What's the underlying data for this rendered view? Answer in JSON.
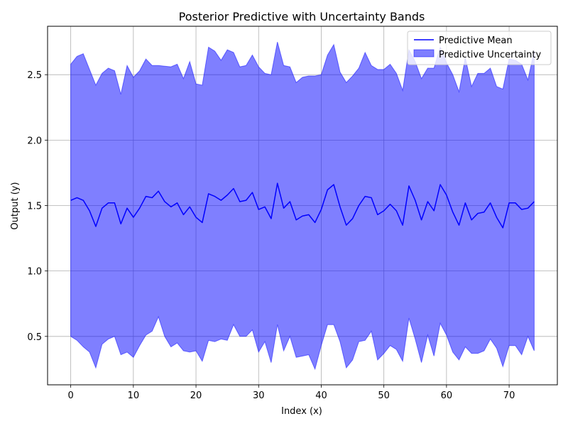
{
  "chart_data": {
    "type": "area",
    "title": "Posterior Predictive with Uncertainty Bands",
    "xlabel": "Index (x)",
    "ylabel": "Output (y)",
    "xlim": [
      -3.7,
      77.7
    ],
    "ylim": [
      0.13,
      2.87
    ],
    "xticks": [
      0,
      10,
      20,
      30,
      40,
      50,
      60,
      70
    ],
    "yticks": [
      0.5,
      1.0,
      1.5,
      2.0,
      2.5
    ],
    "xtick_labels": [
      "0",
      "10",
      "20",
      "30",
      "40",
      "50",
      "60",
      "70"
    ],
    "ytick_labels": [
      "0.5",
      "1.0",
      "1.5",
      "2.0",
      "2.5"
    ],
    "grid": true,
    "legend_position": "upper right",
    "colors": {
      "mean_line": "#0000ff",
      "band_fill": "#0000ff",
      "band_alpha": 0.5,
      "grid": "#b0b0b0"
    },
    "x": [
      0,
      1,
      2,
      3,
      4,
      5,
      6,
      7,
      8,
      9,
      10,
      11,
      12,
      13,
      14,
      15,
      16,
      17,
      18,
      19,
      20,
      21,
      22,
      23,
      24,
      25,
      26,
      27,
      28,
      29,
      30,
      31,
      32,
      33,
      34,
      35,
      36,
      37,
      38,
      39,
      40,
      41,
      42,
      43,
      44,
      45,
      46,
      47,
      48,
      49,
      50,
      51,
      52,
      53,
      54,
      55,
      56,
      57,
      58,
      59,
      60,
      61,
      62,
      63,
      64,
      65,
      66,
      67,
      68,
      69,
      70,
      71,
      72,
      73,
      74
    ],
    "series": [
      {
        "name": "Predictive Mean",
        "kind": "line",
        "values": [
          1.54,
          1.56,
          1.54,
          1.46,
          1.34,
          1.48,
          1.52,
          1.52,
          1.36,
          1.48,
          1.41,
          1.48,
          1.57,
          1.56,
          1.61,
          1.53,
          1.49,
          1.52,
          1.43,
          1.49,
          1.41,
          1.37,
          1.59,
          1.57,
          1.54,
          1.58,
          1.63,
          1.53,
          1.54,
          1.6,
          1.47,
          1.49,
          1.4,
          1.67,
          1.48,
          1.53,
          1.39,
          1.42,
          1.43,
          1.37,
          1.47,
          1.62,
          1.66,
          1.49,
          1.35,
          1.4,
          1.5,
          1.57,
          1.56,
          1.43,
          1.46,
          1.51,
          1.46,
          1.35,
          1.65,
          1.54,
          1.39,
          1.53,
          1.46,
          1.66,
          1.58,
          1.45,
          1.35,
          1.52,
          1.39,
          1.44,
          1.45,
          1.52,
          1.41,
          1.33,
          1.52,
          1.52,
          1.47,
          1.48,
          1.53
        ]
      },
      {
        "name": "Predictive Uncertainty",
        "kind": "band",
        "upper": [
          2.58,
          2.64,
          2.66,
          2.54,
          2.42,
          2.51,
          2.55,
          2.53,
          2.35,
          2.57,
          2.48,
          2.53,
          2.62,
          2.57,
          2.57,
          2.565,
          2.56,
          2.58,
          2.47,
          2.6,
          2.43,
          2.42,
          2.71,
          2.68,
          2.61,
          2.69,
          2.67,
          2.56,
          2.57,
          2.65,
          2.56,
          2.51,
          2.5,
          2.75,
          2.57,
          2.56,
          2.44,
          2.48,
          2.49,
          2.49,
          2.5,
          2.65,
          2.73,
          2.52,
          2.44,
          2.49,
          2.55,
          2.67,
          2.57,
          2.54,
          2.54,
          2.58,
          2.51,
          2.38,
          2.69,
          2.6,
          2.47,
          2.55,
          2.55,
          2.71,
          2.59,
          2.5,
          2.37,
          2.63,
          2.41,
          2.51,
          2.51,
          2.55,
          2.41,
          2.39,
          2.62,
          2.61,
          2.58,
          2.46,
          2.68
        ],
        "lower": [
          0.5,
          0.47,
          0.42,
          0.38,
          0.26,
          0.44,
          0.48,
          0.5,
          0.36,
          0.38,
          0.34,
          0.43,
          0.51,
          0.54,
          0.65,
          0.5,
          0.42,
          0.45,
          0.39,
          0.38,
          0.39,
          0.31,
          0.47,
          0.46,
          0.48,
          0.47,
          0.59,
          0.5,
          0.5,
          0.55,
          0.38,
          0.46,
          0.3,
          0.59,
          0.39,
          0.5,
          0.34,
          0.35,
          0.36,
          0.25,
          0.43,
          0.59,
          0.59,
          0.46,
          0.26,
          0.32,
          0.46,
          0.47,
          0.54,
          0.32,
          0.37,
          0.43,
          0.4,
          0.31,
          0.64,
          0.48,
          0.3,
          0.51,
          0.35,
          0.6,
          0.51,
          0.38,
          0.32,
          0.42,
          0.37,
          0.37,
          0.39,
          0.48,
          0.41,
          0.27,
          0.43,
          0.43,
          0.36,
          0.5,
          0.39
        ]
      }
    ]
  }
}
